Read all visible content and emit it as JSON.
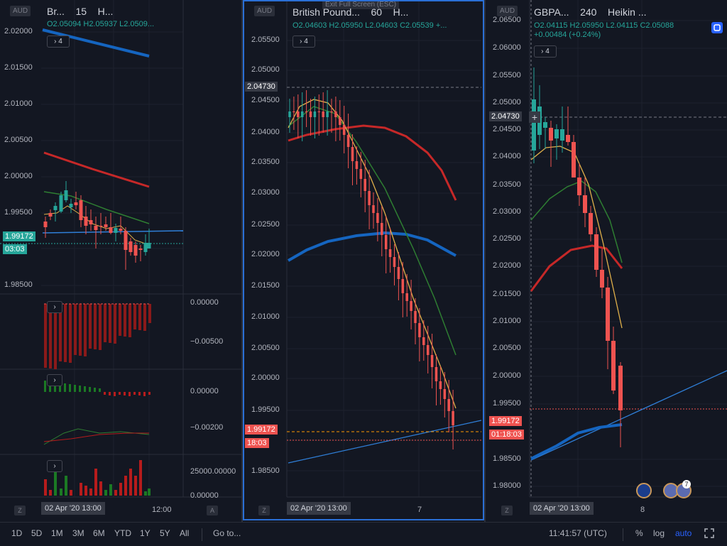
{
  "panels": [
    {
      "id": "left",
      "badge": "AUD",
      "symbol": "Br...",
      "interval": "15",
      "charttype": "H...",
      "ohlc": "O2.05094  H2.05937  L2.0509...",
      "collapse": "4",
      "y_ticks": [
        "2.02000",
        "2.01500",
        "2.01000",
        "2.00500",
        "2.00000",
        "1.99500",
        "1.98500"
      ],
      "price_tag": "1.99172",
      "countdown": "03:03",
      "osc1_ticks": [
        "0.00000",
        "−0.00500"
      ],
      "osc2_ticks": [
        "0.00000",
        "−0.00200"
      ],
      "vol_ticks": [
        "25000.00000",
        "0.00000"
      ],
      "date_label": "02 Apr '20  13:00",
      "time_label": "12:00"
    },
    {
      "id": "middle",
      "badge": "AUD",
      "symbol": "British Pound...",
      "interval": "60",
      "charttype": "H...",
      "tooltip": "Exit Full Screen (ESC)",
      "ohlc": "O2.04603  H2.05950  L2.04603  C2.05539  +...",
      "collapse": "4",
      "y_ticks": [
        "2.05500",
        "2.05000",
        "2.04500",
        "2.04000",
        "2.03500",
        "2.03000",
        "2.02500",
        "2.02000",
        "2.01500",
        "2.01000",
        "2.00500",
        "2.00000",
        "1.99500",
        "1.98500"
      ],
      "crosshair_price": "2.04730",
      "price_tag": "1.99172",
      "countdown": "18:03",
      "date_label": "02 Apr '20   13:00",
      "x_label": "7"
    },
    {
      "id": "right",
      "badge": "AUD",
      "symbol": "GBPA...",
      "interval": "240",
      "charttype": "Heikin ...",
      "ohlc": "O2.04115  H2.05950  L2.04115  C2.05088",
      "change": "+0.00484 (+0.24%)",
      "collapse": "4",
      "y_ticks": [
        "2.06500",
        "2.06000",
        "2.05500",
        "2.05000",
        "2.04500",
        "2.04000",
        "2.03500",
        "2.03000",
        "2.02500",
        "2.02000",
        "2.01500",
        "2.01000",
        "2.00500",
        "2.00000",
        "1.99500",
        "1.98500",
        "1.98000"
      ],
      "crosshair_price": "2.04730",
      "price_tag": "1.99172",
      "countdown": "01:18:03",
      "date_label": "02 Apr '20   13:00",
      "x_label": "8",
      "event_count": "7"
    }
  ],
  "toolbar": {
    "ranges": [
      "1D",
      "5D",
      "1M",
      "3M",
      "6M",
      "YTD",
      "1Y",
      "5Y",
      "All"
    ],
    "goto": "Go to...",
    "clock": "11:41:57 (UTC)",
    "percent": "%",
    "log": "log",
    "auto": "auto"
  },
  "colors": {
    "up": "#26a69a",
    "down": "#ef5350",
    "ma_red": "#c62828",
    "ma_green": "#2e7d32",
    "ma_blue": "#1565c0",
    "ma_yellow": "#e0b04a",
    "trend": "#2f7fd8",
    "active_border": "#2962ff"
  }
}
